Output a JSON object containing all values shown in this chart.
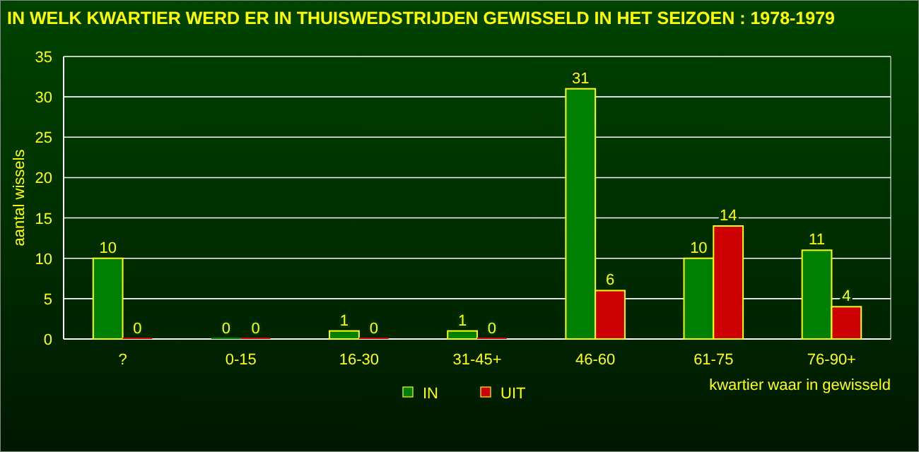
{
  "chart_data": {
    "type": "bar",
    "title": "IN WELK KWARTIER WERD ER IN THUISWEDSTRIJDEN GEWISSELD IN HET SEIZOEN : 1978-1979",
    "xlabel": "kwartier waar in gewisseld",
    "ylabel": "aantal wissels",
    "categories": [
      "?",
      "0-15",
      "16-30",
      "31-45+",
      "46-60",
      "61-75",
      "76-90+"
    ],
    "series": [
      {
        "name": "IN",
        "color": "#008000",
        "values": [
          10,
          0,
          1,
          1,
          31,
          10,
          11
        ]
      },
      {
        "name": "UIT",
        "color": "#cc0000",
        "values": [
          0,
          0,
          0,
          0,
          6,
          14,
          4
        ]
      }
    ],
    "ylim": [
      0,
      35
    ],
    "yticks": [
      0,
      5,
      10,
      15,
      20,
      25,
      30,
      35
    ],
    "grid": "y",
    "legend": "bottom",
    "data_labels": true
  }
}
